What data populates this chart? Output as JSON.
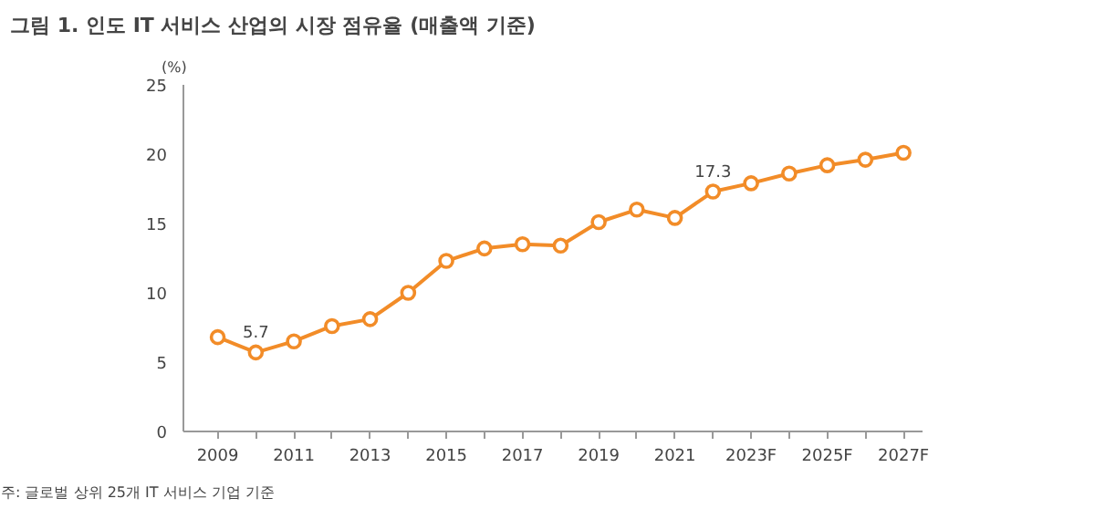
{
  "chart_data": {
    "type": "line",
    "title": "그림 1. 인도 IT 서비스 산업의 시장 점유율 (매출액 기준)",
    "ylabel": "(%)",
    "categories": [
      "2009",
      null,
      "2011",
      null,
      "2013",
      null,
      "2015",
      null,
      "2017",
      null,
      "2019",
      null,
      "2021",
      null,
      "2023F",
      null,
      "2025F",
      null,
      "2027F"
    ],
    "series": [
      {
        "color": "#f28c28",
        "values": [
          6.8,
          5.7,
          6.5,
          7.6,
          8.1,
          10.0,
          12.3,
          13.2,
          13.5,
          13.4,
          15.1,
          16.0,
          15.4,
          17.3,
          17.9,
          18.6,
          19.2,
          19.6,
          20.1
        ],
        "value_labels": [
          null,
          "5.7",
          null,
          null,
          null,
          null,
          null,
          null,
          null,
          null,
          null,
          null,
          null,
          "17.3",
          null,
          null,
          null,
          null,
          null
        ]
      }
    ],
    "ylim": [
      0,
      25
    ],
    "yticks": [
      0,
      5,
      10,
      15,
      20,
      25
    ],
    "grid": false,
    "marker": "circle",
    "line_style": "solid",
    "annotations": [
      "주: 글로벌 상위 25개 IT 서비스 기업 기준"
    ]
  }
}
